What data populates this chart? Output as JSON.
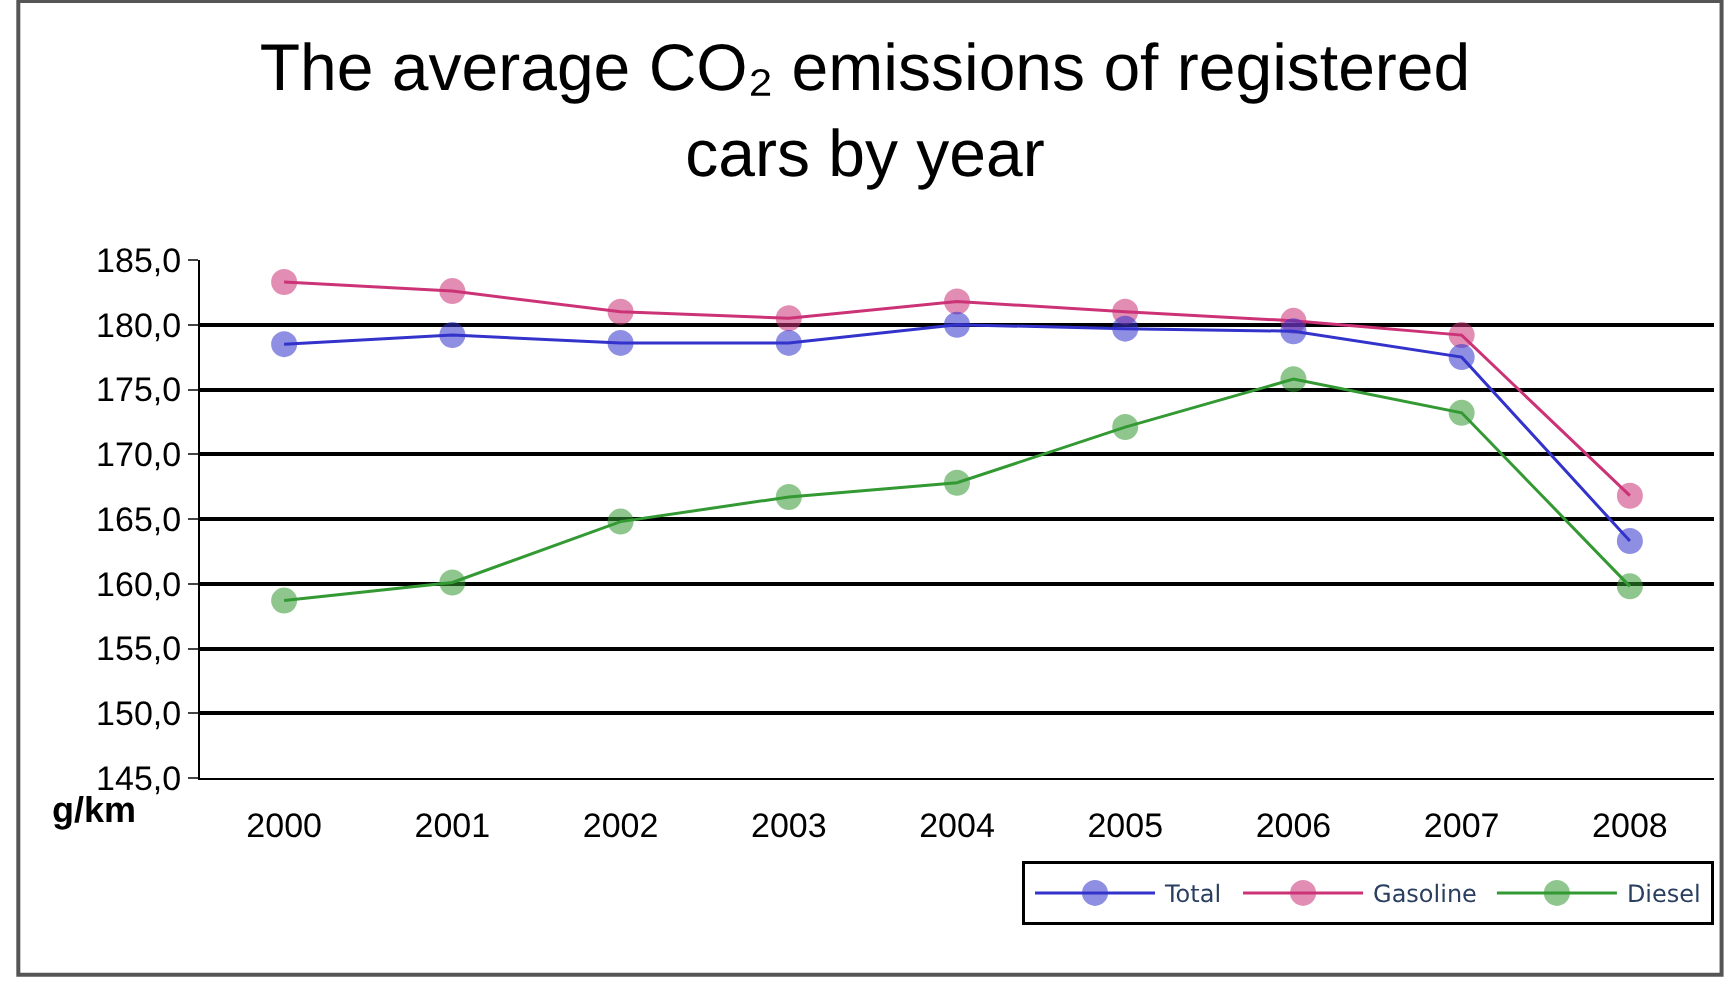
{
  "chart_data": {
    "type": "line",
    "title": "The average CO₂ emissions of registered cars by year",
    "ylabel": "g/km",
    "categories": [
      "2000",
      "2001",
      "2002",
      "2003",
      "2004",
      "2005",
      "2006",
      "2007",
      "2008"
    ],
    "series": [
      {
        "name": "Total",
        "color": "#3333cc",
        "values": [
          178.5,
          179.2,
          178.6,
          178.6,
          180.0,
          179.7,
          179.5,
          177.5,
          163.3
        ]
      },
      {
        "name": "Gasoline",
        "color": "#cc3377",
        "values": [
          183.3,
          182.6,
          181.0,
          180.5,
          181.8,
          181.0,
          180.3,
          179.2,
          166.8
        ]
      },
      {
        "name": "Diesel",
        "color": "#339933",
        "values": [
          158.7,
          160.1,
          164.8,
          166.7,
          167.8,
          172.1,
          175.8,
          173.2,
          159.8
        ]
      }
    ],
    "ylim": [
      145,
      185
    ],
    "yticks": [
      {
        "value": 145,
        "label": "145,0"
      },
      {
        "value": 150,
        "label": "150,0"
      },
      {
        "value": 155,
        "label": "155,0"
      },
      {
        "value": 160,
        "label": "160,0"
      },
      {
        "value": 165,
        "label": "165,0"
      },
      {
        "value": 170,
        "label": "170,0"
      },
      {
        "value": 175,
        "label": "175,0"
      },
      {
        "value": 180,
        "label": "180,0"
      },
      {
        "value": 185,
        "label": "185,0"
      }
    ],
    "grid": "y",
    "legend": "bottom right",
    "marker": "circle",
    "line_style": "solid"
  }
}
